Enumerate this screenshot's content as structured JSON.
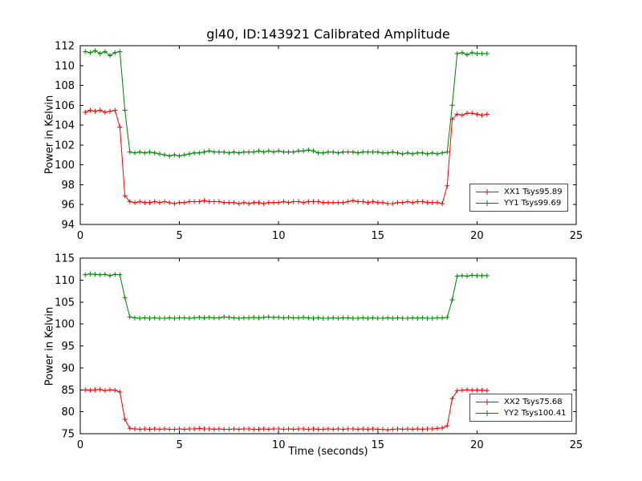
{
  "figure": {
    "title": "gl40, ID:143921 Calibrated Amplitude",
    "background": "#ffffff",
    "axis_color": "#000000"
  },
  "chart_data": [
    {
      "type": "line",
      "subplot": "top",
      "ylabel": "Power in Kelvin",
      "xlabel": "",
      "xlim": [
        0,
        25
      ],
      "ylim": [
        94,
        112
      ],
      "x_ticks": [
        0,
        5,
        10,
        15,
        20,
        25
      ],
      "y_ticks": [
        94,
        96,
        98,
        100,
        102,
        104,
        106,
        108,
        110,
        112
      ],
      "grid": false,
      "marker": "+",
      "legend_position": "lower right",
      "x": [
        0.25,
        0.5,
        0.75,
        1,
        1.25,
        1.5,
        1.75,
        2,
        2.25,
        2.5,
        2.75,
        3,
        3.25,
        3.5,
        3.75,
        4,
        4.25,
        4.5,
        4.75,
        5,
        5.25,
        5.5,
        5.75,
        6,
        6.25,
        6.5,
        6.75,
        7,
        7.25,
        7.5,
        7.75,
        8,
        8.25,
        8.5,
        8.75,
        9,
        9.25,
        9.5,
        9.75,
        10,
        10.25,
        10.5,
        10.75,
        11,
        11.25,
        11.5,
        11.75,
        12,
        12.25,
        12.5,
        12.75,
        13,
        13.25,
        13.5,
        13.75,
        14,
        14.25,
        14.5,
        14.75,
        15,
        15.25,
        15.5,
        15.75,
        16,
        16.25,
        16.5,
        16.75,
        17,
        17.25,
        17.5,
        17.75,
        18,
        18.25,
        18.5,
        18.75,
        19,
        19.25,
        19.5,
        19.75,
        20,
        20.25,
        20.5
      ],
      "series": [
        {
          "name": "XX1 Tsys95.89",
          "color": "#ff0000",
          "values": [
            105.3,
            105.5,
            105.4,
            105.5,
            105.3,
            105.4,
            105.5,
            103.8,
            96.9,
            96.3,
            96.2,
            96.3,
            96.2,
            96.2,
            96.3,
            96.2,
            96.3,
            96.2,
            96.1,
            96.2,
            96.2,
            96.3,
            96.3,
            96.3,
            96.4,
            96.3,
            96.3,
            96.3,
            96.2,
            96.2,
            96.2,
            96.1,
            96.2,
            96.1,
            96.2,
            96.2,
            96.1,
            96.2,
            96.2,
            96.2,
            96.3,
            96.2,
            96.3,
            96.3,
            96.2,
            96.3,
            96.3,
            96.3,
            96.2,
            96.2,
            96.2,
            96.2,
            96.2,
            96.3,
            96.4,
            96.3,
            96.3,
            96.2,
            96.3,
            96.2,
            96.2,
            96.1,
            96.1,
            96.2,
            96.2,
            96.3,
            96.2,
            96.3,
            96.3,
            96.2,
            96.2,
            96.2,
            96.1,
            97.9,
            104.6,
            105.1,
            105.0,
            105.2,
            105.2,
            105.1,
            105.0,
            105.1
          ]
        },
        {
          "name": "YY1 Tsys99.69",
          "color": "#008000",
          "values": [
            111.4,
            111.3,
            111.5,
            111.2,
            111.4,
            111.0,
            111.3,
            111.4,
            105.5,
            101.3,
            101.2,
            101.3,
            101.2,
            101.3,
            101.2,
            101.1,
            101.0,
            100.9,
            101.0,
            100.9,
            101.0,
            101.1,
            101.2,
            101.2,
            101.3,
            101.4,
            101.3,
            101.3,
            101.3,
            101.2,
            101.3,
            101.2,
            101.3,
            101.3,
            101.3,
            101.4,
            101.3,
            101.4,
            101.3,
            101.4,
            101.3,
            101.3,
            101.3,
            101.4,
            101.4,
            101.5,
            101.4,
            101.2,
            101.2,
            101.3,
            101.3,
            101.2,
            101.3,
            101.3,
            101.3,
            101.2,
            101.3,
            101.3,
            101.3,
            101.3,
            101.2,
            101.2,
            101.3,
            101.2,
            101.1,
            101.2,
            101.1,
            101.2,
            101.2,
            101.1,
            101.2,
            101.1,
            101.2,
            101.3,
            106.0,
            111.2,
            111.3,
            111.1,
            111.3,
            111.2,
            111.2,
            111.2
          ]
        }
      ]
    },
    {
      "type": "line",
      "subplot": "bottom",
      "ylabel": "Power in Kelvin",
      "xlabel": "Time (seconds)",
      "xlim": [
        0,
        25
      ],
      "ylim": [
        75,
        115
      ],
      "x_ticks": [
        0,
        5,
        10,
        15,
        20,
        25
      ],
      "y_ticks": [
        75,
        80,
        85,
        90,
        95,
        100,
        105,
        110,
        115
      ],
      "grid": false,
      "marker": "+",
      "legend_position": "lower right",
      "x": [
        0.25,
        0.5,
        0.75,
        1,
        1.25,
        1.5,
        1.75,
        2,
        2.25,
        2.5,
        2.75,
        3,
        3.25,
        3.5,
        3.75,
        4,
        4.25,
        4.5,
        4.75,
        5,
        5.25,
        5.5,
        5.75,
        6,
        6.25,
        6.5,
        6.75,
        7,
        7.25,
        7.5,
        7.75,
        8,
        8.25,
        8.5,
        8.75,
        9,
        9.25,
        9.5,
        9.75,
        10,
        10.25,
        10.5,
        10.75,
        11,
        11.25,
        11.5,
        11.75,
        12,
        12.25,
        12.5,
        12.75,
        13,
        13.25,
        13.5,
        13.75,
        14,
        14.25,
        14.5,
        14.75,
        15,
        15.25,
        15.5,
        15.75,
        16,
        16.25,
        16.5,
        16.75,
        17,
        17.25,
        17.5,
        17.75,
        18,
        18.25,
        18.5,
        18.75,
        19,
        19.25,
        19.5,
        19.75,
        20,
        20.25,
        20.5
      ],
      "series": [
        {
          "name": "XX2 Tsys75.68",
          "color": "#ff0000",
          "values": [
            85.0,
            84.9,
            85.0,
            85.1,
            84.8,
            85.0,
            84.9,
            84.5,
            78.3,
            76.2,
            76.1,
            76.0,
            76.1,
            76.0,
            76.1,
            76.0,
            76.1,
            76.0,
            76.0,
            76.1,
            76.0,
            76.1,
            76.1,
            76.2,
            76.1,
            76.1,
            76.0,
            76.1,
            76.0,
            76.0,
            76.1,
            76.0,
            76.1,
            76.1,
            76.0,
            76.0,
            76.1,
            76.0,
            76.1,
            76.1,
            76.0,
            76.1,
            76.0,
            76.1,
            76.1,
            76.0,
            76.1,
            76.0,
            76.0,
            76.1,
            76.0,
            76.1,
            76.0,
            76.1,
            76.1,
            76.0,
            76.1,
            76.0,
            76.1,
            76.0,
            76.0,
            75.9,
            76.0,
            76.1,
            76.0,
            76.1,
            76.0,
            76.1,
            76.0,
            76.1,
            76.1,
            76.2,
            76.3,
            76.8,
            83.0,
            84.8,
            84.9,
            85.0,
            84.9,
            84.9,
            84.9,
            84.8
          ]
        },
        {
          "name": "YY2 Tsys100.41",
          "color": "#008000",
          "values": [
            111.2,
            111.4,
            111.3,
            111.2,
            111.3,
            111.0,
            111.3,
            111.2,
            106.0,
            101.6,
            101.4,
            101.3,
            101.4,
            101.3,
            101.4,
            101.3,
            101.3,
            101.4,
            101.3,
            101.4,
            101.4,
            101.3,
            101.4,
            101.5,
            101.4,
            101.5,
            101.4,
            101.4,
            101.6,
            101.5,
            101.4,
            101.3,
            101.4,
            101.4,
            101.5,
            101.4,
            101.5,
            101.6,
            101.5,
            101.5,
            101.4,
            101.5,
            101.4,
            101.4,
            101.5,
            101.4,
            101.3,
            101.4,
            101.3,
            101.3,
            101.4,
            101.3,
            101.4,
            101.4,
            101.3,
            101.3,
            101.4,
            101.3,
            101.4,
            101.3,
            101.3,
            101.4,
            101.3,
            101.4,
            101.3,
            101.3,
            101.4,
            101.3,
            101.4,
            101.3,
            101.3,
            101.4,
            101.4,
            101.5,
            105.5,
            110.9,
            111.0,
            110.9,
            111.1,
            111.0,
            111.0,
            111.0
          ]
        }
      ]
    }
  ]
}
